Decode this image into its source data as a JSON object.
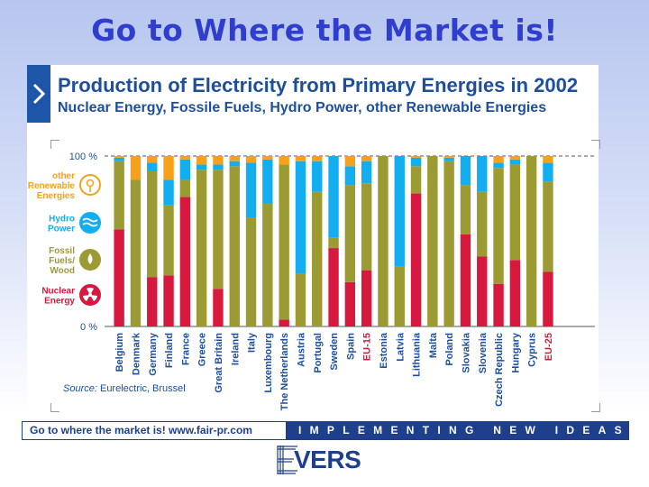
{
  "page": {
    "headline": "Go to Where the Market is!",
    "footer_left": "Go to where the market is!   www.fair-pr.com",
    "footer_right": "IMPLEMENTING NEW IDEAS",
    "logo_text": "VERS",
    "logo_mark": "E"
  },
  "chart_data": {
    "type": "bar",
    "stacked": true,
    "title": "Production of Electricity from Primary Energies in 2002",
    "subtitle": "Nuclear Energy, Fossile Fuels, Hydro Power, other Renewable Energies",
    "source_label": "Source:",
    "source_text": " Eurelectric, Brussel",
    "ylim": [
      0,
      100
    ],
    "yticks": [
      "100 %",
      "0 %"
    ],
    "legend_placement": "left",
    "categories": [
      "Belgium",
      "Denmark",
      "Germany",
      "Finland",
      "France",
      "Greece",
      "Great Britain",
      "Ireland",
      "Italy",
      "Luxembourg",
      "The Netherlands",
      "Austria",
      "Portugal",
      "Sweden",
      "Spain",
      "EU-15",
      "Estonia",
      "Latvia",
      "Lithuania",
      "Malta",
      "Poland",
      "Slovakia",
      "Slovenia",
      "Czech Republic",
      "Hungary",
      "Cyprus",
      "EU-25"
    ],
    "highlight_categories": [
      "EU-15",
      "EU-25"
    ],
    "series": [
      {
        "name": "Nuclear Energy",
        "key": "nuclear",
        "color": "#d7193f",
        "values": [
          57,
          0,
          29,
          30,
          76,
          0,
          22,
          0,
          0,
          0,
          4,
          0,
          0,
          46,
          26,
          33,
          0,
          0,
          78,
          0,
          0,
          54,
          41,
          25,
          39,
          0,
          32
        ]
      },
      {
        "name": "Fossil Fuels/ Wood",
        "key": "fossil",
        "color": "#9c9a33",
        "values": [
          40,
          86,
          62,
          41,
          10,
          92,
          70,
          94,
          64,
          72,
          91,
          31,
          79,
          6,
          57,
          51,
          100,
          35,
          16,
          100,
          97,
          29,
          38,
          68,
          56,
          100,
          53
        ]
      },
      {
        "name": "Hydro Power",
        "key": "hydro",
        "color": "#13aef0",
        "values": [
          2,
          0,
          5,
          15,
          12,
          3,
          3,
          3,
          32,
          26,
          0,
          66,
          18,
          48,
          11,
          13,
          0,
          65,
          5,
          0,
          2,
          17,
          21,
          3,
          3,
          0,
          11
        ]
      },
      {
        "name": "other Renewable Energies",
        "key": "renewable",
        "color": "#f7a11a",
        "values": [
          1,
          14,
          4,
          14,
          2,
          5,
          5,
          3,
          4,
          2,
          5,
          3,
          3,
          0,
          6,
          3,
          0,
          0,
          1,
          0,
          1,
          0,
          0,
          4,
          2,
          0,
          4
        ]
      }
    ],
    "legend": [
      {
        "key": "renewable",
        "label": "other Renewable Energies",
        "icon": "solar-icon",
        "color": "#f7a11a"
      },
      {
        "key": "hydro",
        "label": "Hydro Power",
        "icon": "wave-icon",
        "color": "#13aef0"
      },
      {
        "key": "fossil",
        "label": "Fossil Fuels/ Wood",
        "icon": "drop-icon",
        "color": "#9c9a33"
      },
      {
        "key": "nuclear",
        "label": "Nuclear Energy",
        "icon": "radiation-icon",
        "color": "#d7193f"
      }
    ],
    "label_color": "#1d4f9c",
    "highlight_color": "#d7193f"
  }
}
